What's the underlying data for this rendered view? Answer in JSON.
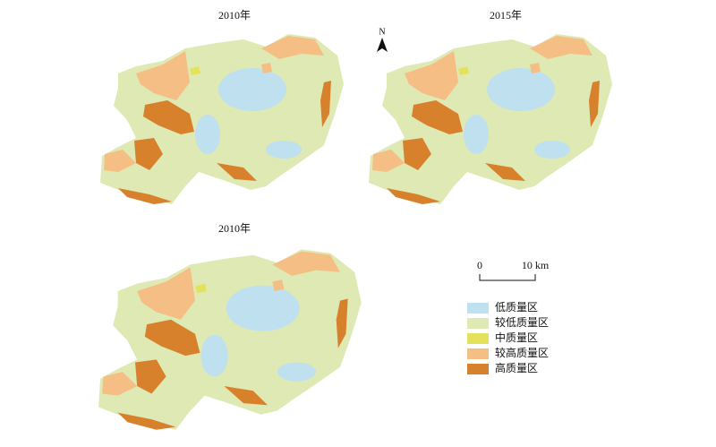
{
  "maps": [
    {
      "title": "2010年"
    },
    {
      "title": "2015年"
    },
    {
      "title": "2010年"
    }
  ],
  "north_arrow": {
    "label": "N"
  },
  "scale_bar": {
    "start": "0",
    "end": "10 km"
  },
  "legend": {
    "items": [
      {
        "label": "低质量区",
        "color": "#bfe0ee"
      },
      {
        "label": "较低质量区",
        "color": "#dfe9b4"
      },
      {
        "label": "中质量区",
        "color": "#e4e25a"
      },
      {
        "label": "较高质量区",
        "color": "#f4be84"
      },
      {
        "label": "高质量区",
        "color": "#d8812c"
      }
    ]
  }
}
